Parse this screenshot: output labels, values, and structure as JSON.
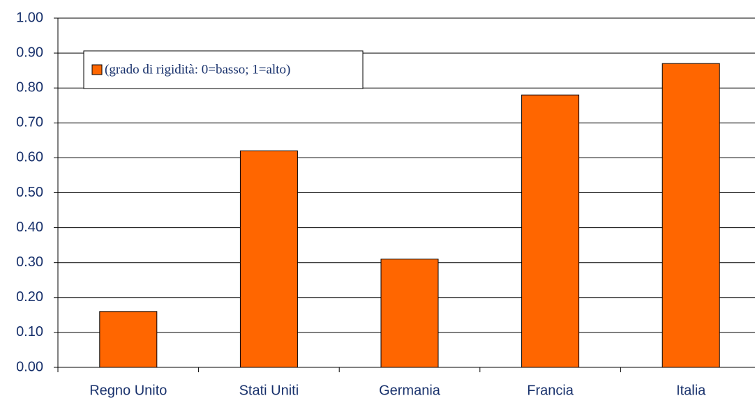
{
  "chart_data": {
    "type": "bar",
    "categories": [
      "Regno Unito",
      "Stati Uniti",
      "Germania",
      "Francia",
      "Italia"
    ],
    "series": [
      {
        "name": "(grado di rigidità: 0=basso; 1=alto)",
        "color": "#ff6600",
        "values": [
          0.16,
          0.62,
          0.31,
          0.78,
          0.87
        ]
      }
    ],
    "ylim": [
      0,
      1
    ],
    "yticks": [
      {
        "value": 0,
        "label": "0.00"
      },
      {
        "value": 0.1,
        "label": "0.10"
      },
      {
        "value": 0.2,
        "label": "0.20"
      },
      {
        "value": 0.3,
        "label": "0.30"
      },
      {
        "value": 0.4,
        "label": "0.40"
      },
      {
        "value": 0.5,
        "label": "0.50"
      },
      {
        "value": 0.6,
        "label": "0.60"
      },
      {
        "value": 0.7,
        "label": "0.70"
      },
      {
        "value": 0.8,
        "label": "0.80"
      },
      {
        "value": 0.9,
        "label": "0.90"
      },
      {
        "value": 1,
        "label": "1.00"
      }
    ],
    "grid": true,
    "legend": "top-left"
  }
}
